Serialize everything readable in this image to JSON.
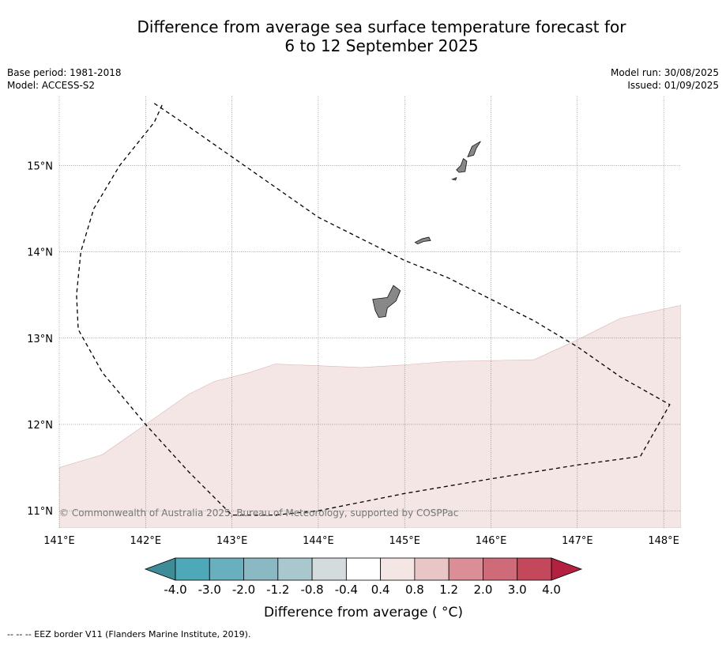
{
  "title": {
    "line1": "Difference from average sea surface temperature forecast for",
    "line2": "6 to 12 September 2025"
  },
  "meta": {
    "base_period": "Base period: 1981-2018",
    "model": "Model: ACCESS-S2",
    "model_run": "Model run: 30/08/2025",
    "issued": "Issued: 01/09/2025"
  },
  "map": {
    "lon_range": [
      141.0,
      148.2
    ],
    "lat_range": [
      10.8,
      15.8
    ],
    "lon_ticks": [
      "141°E",
      "142°E",
      "143°E",
      "144°E",
      "145°E",
      "146°E",
      "147°E",
      "148°E"
    ],
    "lat_ticks": [
      "15°N",
      "14°N",
      "13°N",
      "12°N",
      "11°N"
    ],
    "copyright": "© Commonwealth of Australia 2025, Bureau of Meteorology, supported by COSPPac",
    "anomaly_region": {
      "category": "0.4 to 0.8",
      "color": "#f3e6e4",
      "boundary_lon_lat": [
        [
          141.0,
          11.5
        ],
        [
          141.5,
          11.65
        ],
        [
          142.0,
          12.0
        ],
        [
          142.5,
          12.35
        ],
        [
          142.8,
          12.5
        ],
        [
          143.2,
          12.6
        ],
        [
          143.5,
          12.7
        ],
        [
          144.0,
          12.68
        ],
        [
          144.5,
          12.66
        ],
        [
          145.0,
          12.69
        ],
        [
          145.5,
          12.73
        ],
        [
          146.0,
          12.74
        ],
        [
          146.5,
          12.75
        ],
        [
          147.0,
          12.98
        ],
        [
          147.5,
          13.23
        ],
        [
          148.2,
          13.38
        ]
      ]
    },
    "eez_border_lon_lat": [
      [
        142.1,
        15.72
      ],
      [
        142.5,
        15.45
      ],
      [
        143.0,
        15.1
      ],
      [
        143.5,
        14.75
      ],
      [
        144.0,
        14.4
      ],
      [
        144.5,
        14.15
      ],
      [
        145.0,
        13.9
      ],
      [
        145.5,
        13.7
      ],
      [
        146.0,
        13.45
      ],
      [
        146.5,
        13.2
      ],
      [
        147.0,
        12.9
      ],
      [
        147.5,
        12.55
      ],
      [
        148.07,
        12.23
      ],
      [
        147.73,
        11.63
      ],
      [
        147.0,
        11.53
      ],
      [
        146.0,
        11.37
      ],
      [
        145.0,
        11.2
      ],
      [
        144.0,
        11.0
      ],
      [
        143.5,
        10.95
      ],
      [
        143.0,
        10.95
      ],
      [
        142.5,
        11.45
      ],
      [
        142.0,
        12.0
      ],
      [
        141.5,
        12.6
      ],
      [
        141.22,
        13.1
      ],
      [
        141.2,
        13.5
      ],
      [
        141.25,
        14.0
      ],
      [
        141.4,
        14.5
      ],
      [
        141.7,
        15.0
      ],
      [
        142.1,
        15.5
      ],
      [
        142.2,
        15.72
      ]
    ],
    "islands": [
      {
        "name": "",
        "lon_lat": [
          [
            144.63,
            13.45
          ],
          [
            144.8,
            13.47
          ],
          [
            144.87,
            13.61
          ],
          [
            144.95,
            13.55
          ],
          [
            144.9,
            13.43
          ],
          [
            144.8,
            13.35
          ],
          [
            144.78,
            13.25
          ],
          [
            144.7,
            13.24
          ],
          [
            144.66,
            13.32
          ]
        ]
      },
      {
        "name": "",
        "lon_lat": [
          [
            145.12,
            14.11
          ],
          [
            145.2,
            14.15
          ],
          [
            145.28,
            14.17
          ],
          [
            145.3,
            14.13
          ],
          [
            145.22,
            14.12
          ],
          [
            145.15,
            14.09
          ]
        ]
      },
      {
        "name": "",
        "lon_lat": [
          [
            145.6,
            14.95
          ],
          [
            145.65,
            15.0
          ],
          [
            145.68,
            15.08
          ],
          [
            145.72,
            15.05
          ],
          [
            145.7,
            14.93
          ],
          [
            145.63,
            14.92
          ]
        ]
      },
      {
        "name": "",
        "lon_lat": [
          [
            145.73,
            15.1
          ],
          [
            145.78,
            15.22
          ],
          [
            145.88,
            15.28
          ],
          [
            145.83,
            15.2
          ],
          [
            145.8,
            15.12
          ]
        ]
      },
      {
        "name": "",
        "lon_lat": [
          [
            145.55,
            14.84
          ],
          [
            145.6,
            14.86
          ],
          [
            145.59,
            14.83
          ]
        ]
      }
    ]
  },
  "colorbar": {
    "labels": [
      "-4.0",
      "-3.0",
      "-2.0",
      "-1.2",
      "-0.8",
      "-0.4",
      "0.4",
      "0.8",
      "1.2",
      "2.0",
      "3.0",
      "4.0"
    ],
    "colors": [
      "#4da8b8",
      "#6aafbd",
      "#8ab8c3",
      "#a9c8ce",
      "#d4dbdd",
      "#ffffff",
      "#f3e6e4",
      "#e9c6c6",
      "#dc8e97",
      "#cf6b78",
      "#c4485b"
    ],
    "under_color": "#3f8c99",
    "over_color": "#b42040",
    "title": "Difference from average ( °C)"
  },
  "footnote": "--  --  -- EEZ border V11 (Flanders Marine Institute, 2019)."
}
